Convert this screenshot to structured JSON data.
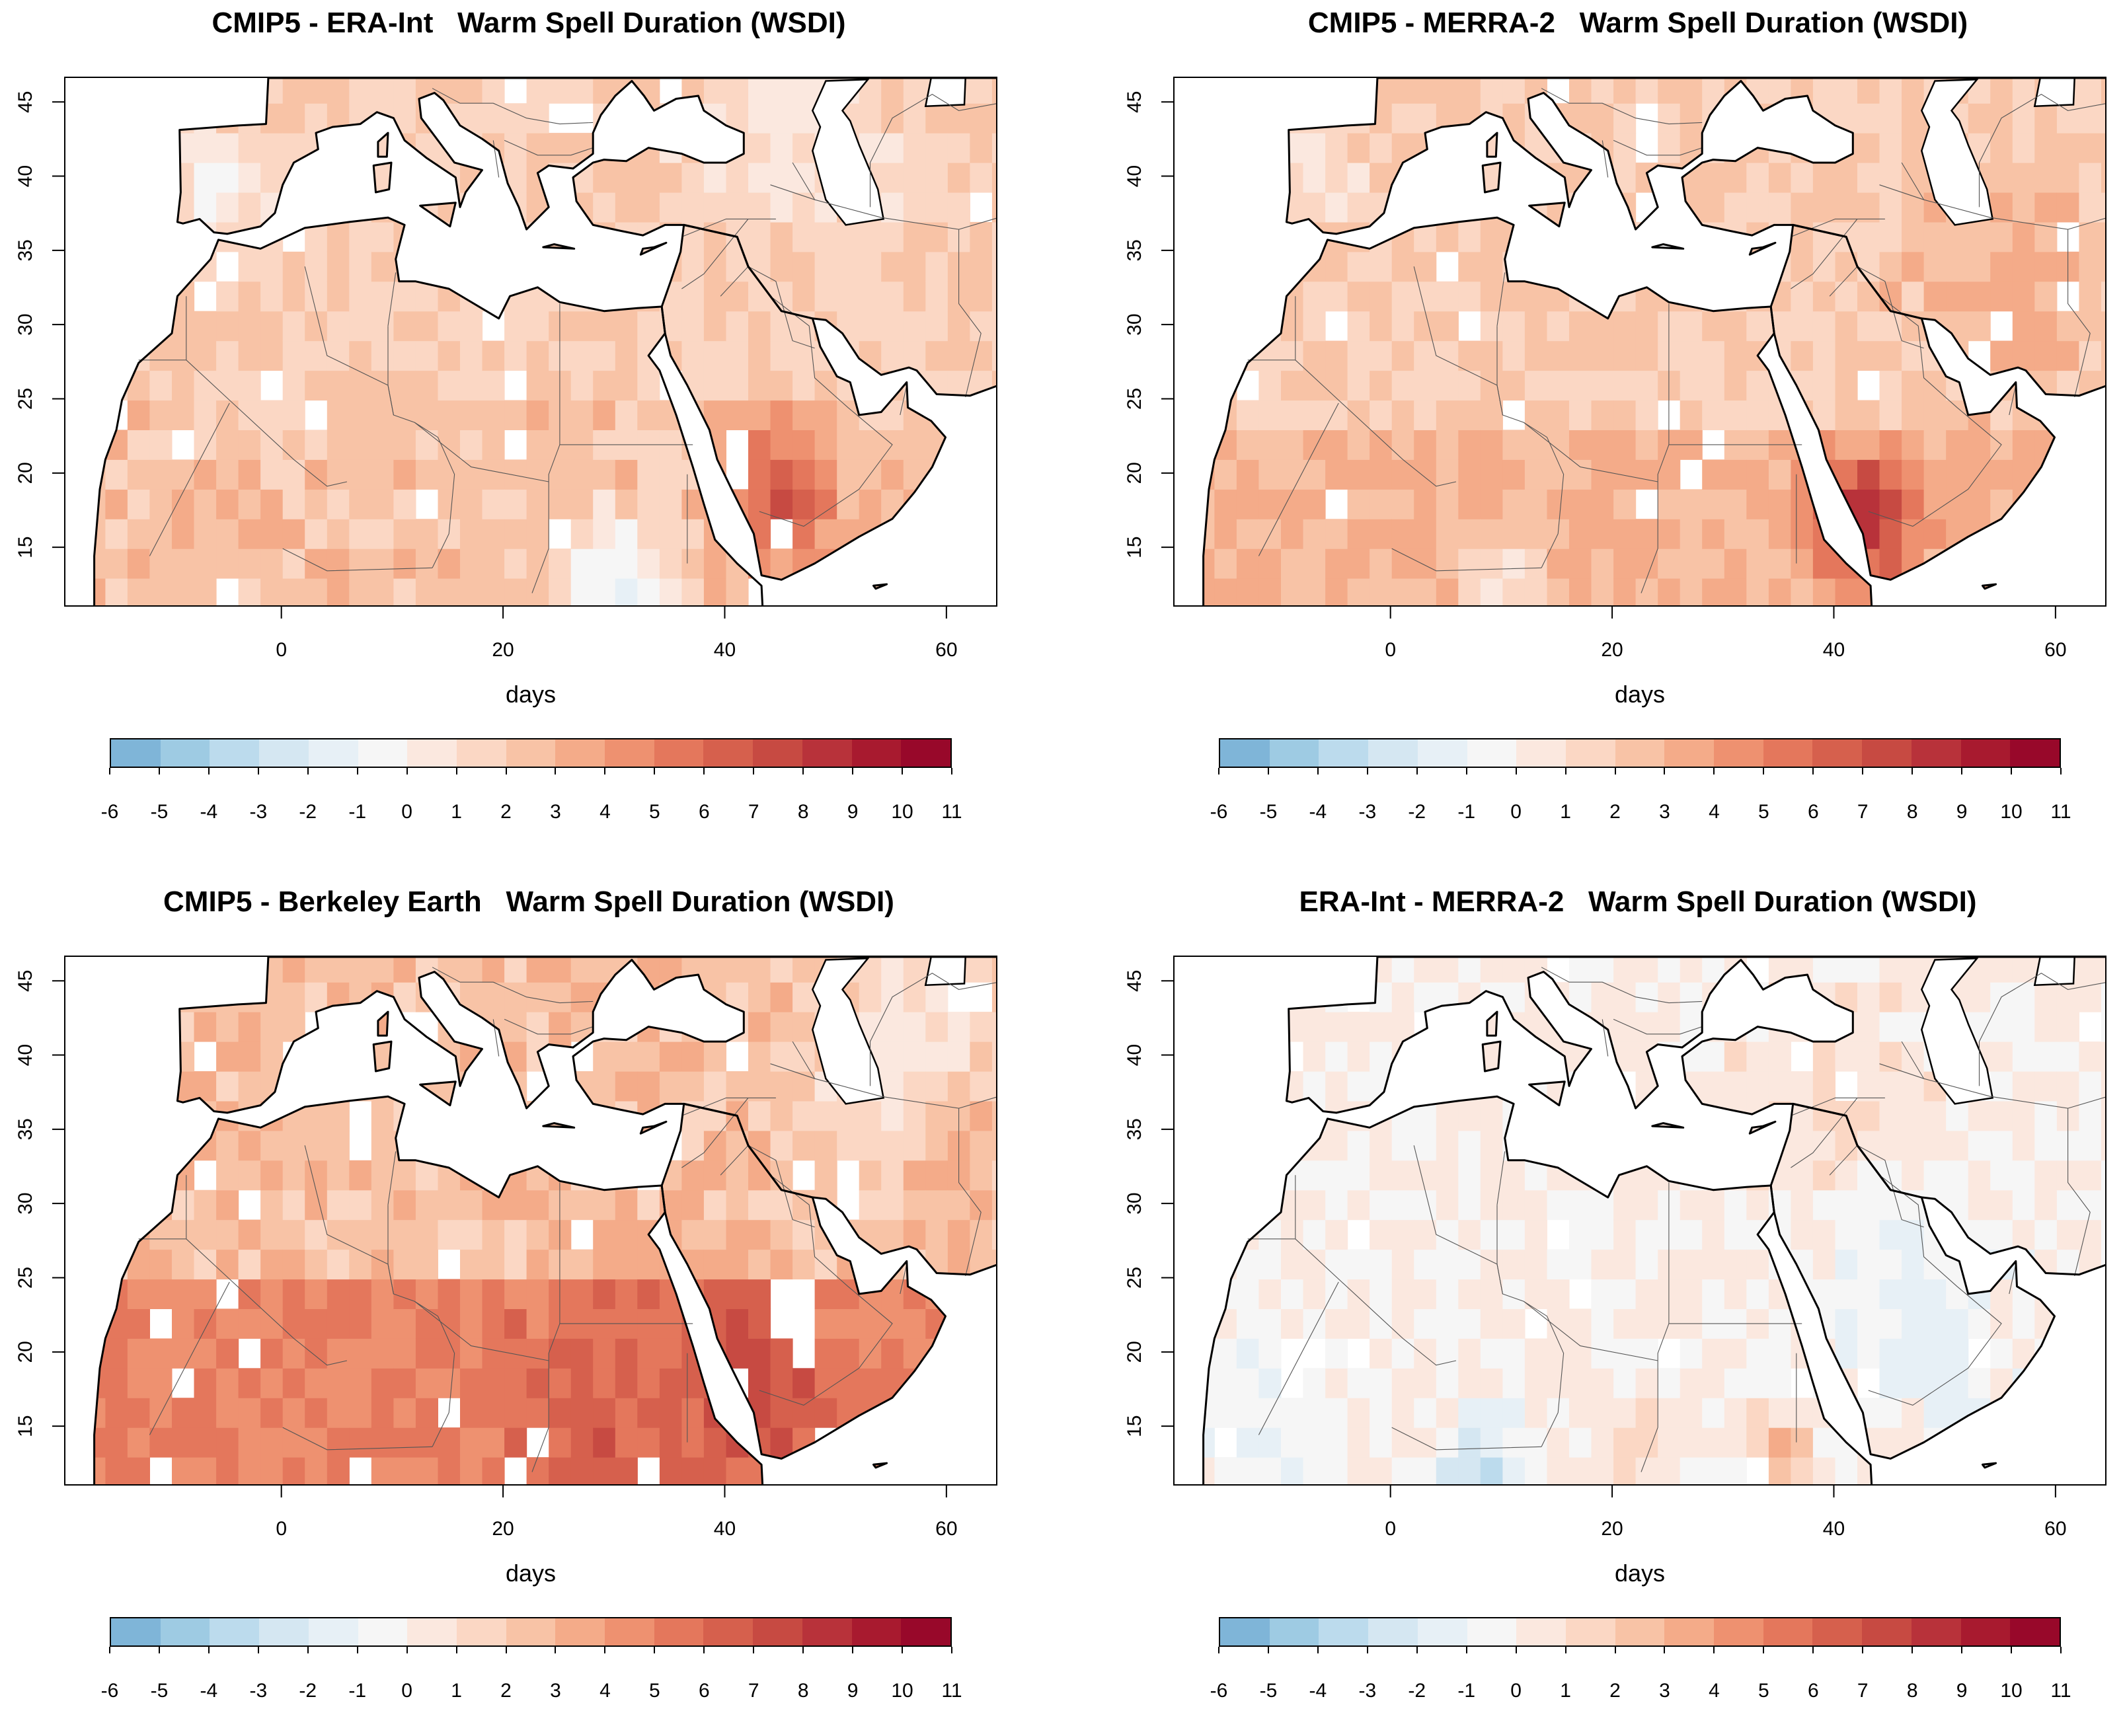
{
  "x_label": "days",
  "lon_ticks": [
    "0",
    "20",
    "40",
    "60"
  ],
  "lat_ticks": [
    "15",
    "20",
    "25",
    "30",
    "35",
    "40",
    "45"
  ],
  "colorbar_ticks": [
    "-6",
    "-5",
    "-4",
    "-3",
    "-2",
    "-1",
    "0",
    "1",
    "2",
    "3",
    "4",
    "5",
    "6",
    "7",
    "8",
    "9",
    "10",
    "11"
  ],
  "colorbar_colors": [
    "#7fb5d8",
    "#9ecbe3",
    "#bcdbed",
    "#d5e7f2",
    "#e7f0f6",
    "#f6f6f6",
    "#fbe8df",
    "#fbd7c4",
    "#f8c3a6",
    "#f4ab89",
    "#ee9170",
    "#e4775c",
    "#d6604d",
    "#c74a42",
    "#b8323a",
    "#a81a2f",
    "#98082a"
  ],
  "panels": [
    {
      "title": "CMIP5 - ERA-Int   Warm Spell Duration (WSDI)",
      "pattern": "era"
    },
    {
      "title": "CMIP5 - MERRA-2   Warm Spell Duration (WSDI)",
      "pattern": "merra"
    },
    {
      "title": "CMIP5 - Berkeley Earth   Warm Spell Duration (WSDI)",
      "pattern": "berkeley"
    },
    {
      "title": "ERA-Int - MERRA-2   Warm Spell Duration (WSDI)",
      "pattern": "diff"
    }
  ]
}
